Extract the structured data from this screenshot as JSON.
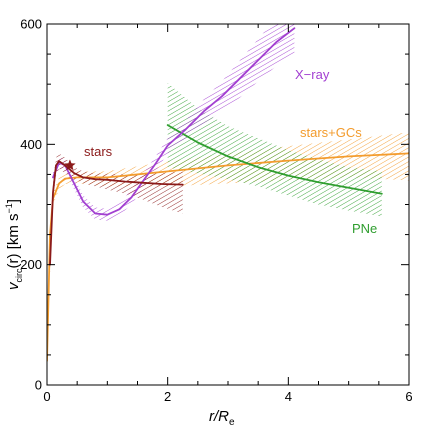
{
  "chart_data": {
    "type": "line",
    "xlabel": "r/R",
    "xlabel_sub": "e",
    "ylabel_main": "v",
    "ylabel_sub": "circ",
    "ylabel_rest": "(r) [km s",
    "ylabel_sup": "−1",
    "ylabel_end": "]",
    "xlim": [
      0,
      6
    ],
    "ylim": [
      0,
      600
    ],
    "x_ticks": [
      "0",
      "2",
      "4",
      "6"
    ],
    "y_ticks": [
      "0",
      "200",
      "400",
      "600"
    ],
    "series": [
      {
        "name": "stars",
        "color": "#8b1a1a",
        "x": [
          0.05,
          0.1,
          0.15,
          0.2,
          0.3,
          0.45,
          0.6,
          0.8,
          1.0,
          1.3,
          1.6,
          1.9,
          2.25
        ],
        "y": [
          200,
          320,
          365,
          372,
          365,
          352,
          345,
          342,
          341,
          338,
          336,
          334,
          333
        ],
        "band_upper": [
          215,
          335,
          378,
          385,
          378,
          362,
          355,
          352,
          351,
          350,
          350,
          352,
          355
        ],
        "band_lower": [
          185,
          305,
          350,
          359,
          352,
          342,
          335,
          330,
          325,
          318,
          308,
          296,
          285
        ]
      },
      {
        "name": "stars+GCs",
        "color": "#f39c2e",
        "x": [
          0.0,
          0.05,
          0.1,
          0.2,
          0.3,
          0.5,
          1.0,
          2.0,
          3.0,
          4.0,
          5.0,
          6.0
        ],
        "y": [
          40,
          250,
          310,
          335,
          343,
          345,
          345,
          355,
          365,
          373,
          380,
          385
        ],
        "band_upper": [
          45,
          260,
          320,
          345,
          352,
          355,
          355,
          372,
          385,
          397,
          408,
          420
        ],
        "band_lower": [
          35,
          240,
          300,
          325,
          334,
          335,
          330,
          330,
          335,
          340,
          345,
          340
        ]
      },
      {
        "name": "X-ray",
        "color": "#a23fd1",
        "x": [
          0.1,
          0.2,
          0.3,
          0.4,
          0.6,
          0.8,
          1.0,
          1.2,
          1.4,
          1.6,
          1.8,
          2.0,
          2.3,
          2.6,
          2.9,
          3.2,
          3.5,
          3.8,
          4.1
        ],
        "y": [
          345,
          370,
          365,
          345,
          305,
          285,
          283,
          292,
          312,
          340,
          368,
          398,
          425,
          455,
          480,
          510,
          540,
          570,
          593
        ],
        "band_upper": [
          355,
          380,
          375,
          355,
          315,
          295,
          293,
          302,
          325,
          352,
          380,
          410,
          440,
          475,
          505,
          540,
          575,
          610,
          640
        ],
        "band_lower": [
          335,
          360,
          355,
          335,
          295,
          275,
          273,
          282,
          300,
          328,
          355,
          385,
          410,
          435,
          455,
          478,
          505,
          530,
          550
        ]
      },
      {
        "name": "PNe",
        "color": "#2f9e2f",
        "x": [
          2.0,
          2.5,
          3.0,
          3.5,
          4.0,
          4.5,
          5.0,
          5.55
        ],
        "y": [
          432,
          403,
          380,
          362,
          348,
          337,
          328,
          318
        ],
        "band_upper": [
          502,
          460,
          430,
          410,
          390,
          375,
          362,
          355
        ],
        "band_lower": [
          362,
          352,
          342,
          330,
          315,
          300,
          290,
          280
        ]
      }
    ],
    "marker": {
      "label": "stars",
      "symbol": "star",
      "x": 0.38,
      "y": 365
    },
    "annotations": {
      "stars": "stars",
      "xray": "X−ray",
      "gcs": "stars+GCs",
      "pne": "PNe"
    }
  }
}
